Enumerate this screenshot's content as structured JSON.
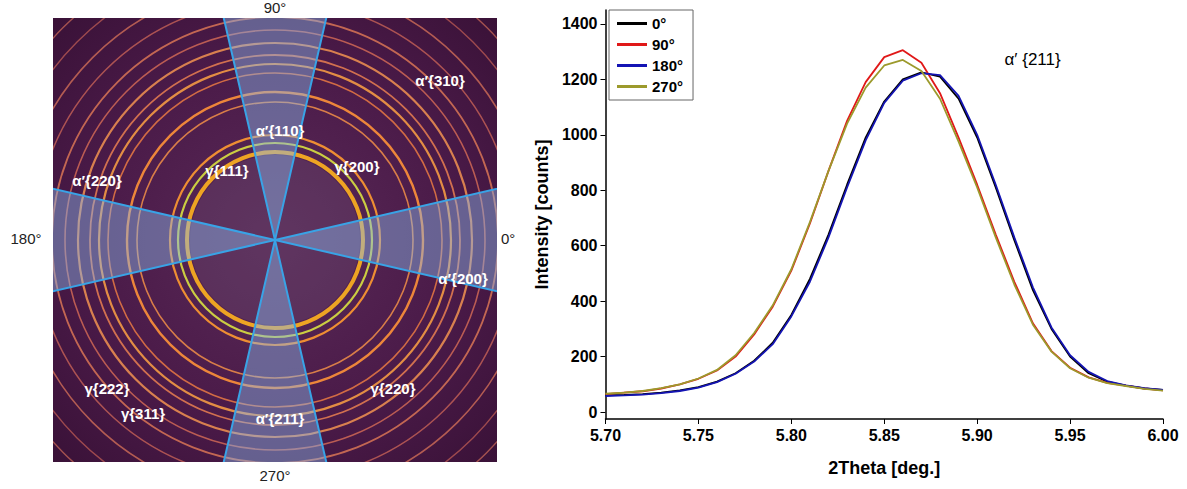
{
  "chart_data": {
    "type": "line",
    "x_label": "2Theta [deg.]",
    "y_label": "Intensity [counts]",
    "x": [
      5.7,
      5.71,
      5.72,
      5.73,
      5.74,
      5.75,
      5.76,
      5.77,
      5.78,
      5.79,
      5.8,
      5.81,
      5.82,
      5.83,
      5.84,
      5.85,
      5.86,
      5.87,
      5.88,
      5.89,
      5.9,
      5.91,
      5.92,
      5.93,
      5.94,
      5.95,
      5.96,
      5.97,
      5.98,
      5.99,
      6.0
    ],
    "series": [
      {
        "name": "0°",
        "color": "#000000",
        "values": [
          60,
          62,
          65,
          70,
          78,
          90,
          110,
          140,
          185,
          250,
          350,
          480,
          640,
          820,
          990,
          1120,
          1200,
          1225,
          1210,
          1130,
          990,
          810,
          620,
          440,
          300,
          200,
          140,
          110,
          95,
          85,
          80
        ]
      },
      {
        "name": "90°",
        "color": "#e01818",
        "values": [
          65,
          70,
          75,
          85,
          100,
          120,
          150,
          200,
          280,
          380,
          510,
          680,
          870,
          1050,
          1190,
          1280,
          1305,
          1260,
          1150,
          990,
          820,
          640,
          470,
          320,
          220,
          160,
          125,
          105,
          95,
          85,
          78
        ]
      },
      {
        "name": "180°",
        "color": "#1414b4",
        "values": [
          58,
          60,
          63,
          68,
          76,
          88,
          108,
          138,
          182,
          245,
          345,
          470,
          630,
          810,
          980,
          1115,
          1195,
          1222,
          1215,
          1140,
          1000,
          820,
          630,
          450,
          305,
          205,
          145,
          112,
          96,
          86,
          80
        ]
      },
      {
        "name": "270°",
        "color": "#9c9a2c",
        "values": [
          66,
          70,
          76,
          86,
          100,
          121,
          152,
          205,
          285,
          385,
          515,
          685,
          870,
          1040,
          1170,
          1250,
          1270,
          1230,
          1130,
          975,
          810,
          630,
          460,
          315,
          218,
          158,
          124,
          104,
          94,
          84,
          77
        ]
      }
    ],
    "xlim": [
      5.7,
      6.0
    ],
    "xticks": [
      {
        "value": 5.7,
        "label": "5.70"
      },
      {
        "value": 5.75,
        "label": "5.75"
      },
      {
        "value": 5.8,
        "label": "5.80"
      },
      {
        "value": 5.85,
        "label": "5.85"
      },
      {
        "value": 5.9,
        "label": "5.90"
      },
      {
        "value": 5.95,
        "label": "5.95"
      },
      {
        "value": 6.0,
        "label": "6.00"
      }
    ],
    "ylim": [
      -25,
      1450
    ],
    "yticks": [
      0,
      200,
      400,
      600,
      800,
      1000,
      1200,
      1400
    ],
    "legend": "upper left",
    "grid": false,
    "annotations": [
      {
        "text": "α′ {211}",
        "x": 5.912,
        "y": 1270
      }
    ]
  },
  "pattern": {
    "direction_labels": [
      "0°",
      "90°",
      "180°",
      "270°"
    ],
    "ring_labels": [
      "α′{310}",
      "α′{110}",
      "γ{111}",
      "γ{200}",
      "α′{220}",
      "α′{200}",
      "γ{222}",
      "γ{311}",
      "γ{220}",
      "α′{211}"
    ]
  }
}
